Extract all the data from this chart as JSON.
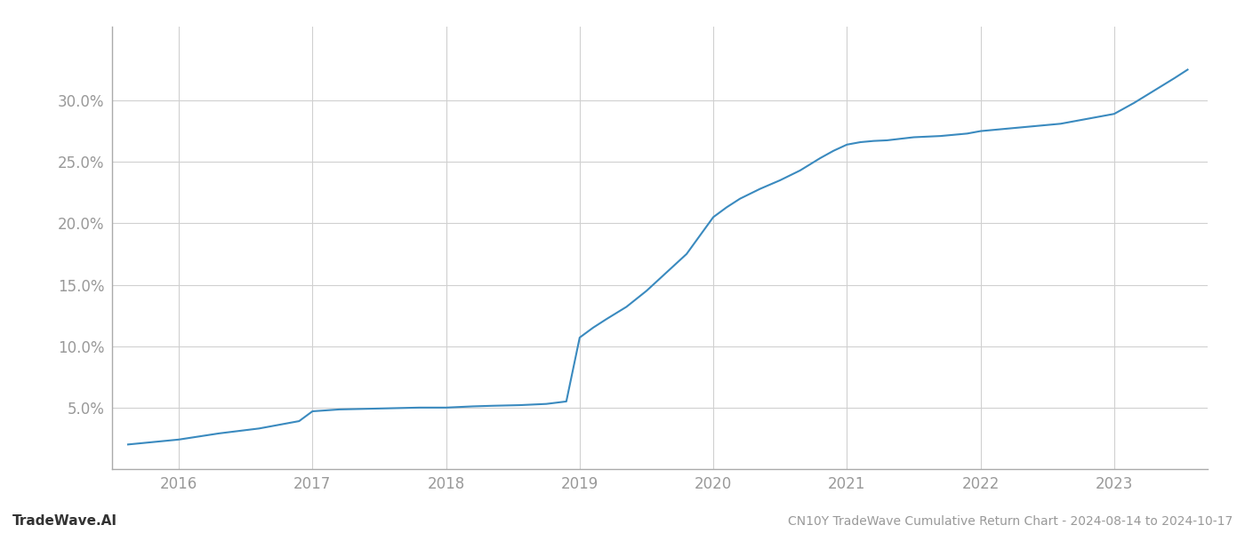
{
  "title": "CN10Y TradeWave Cumulative Return Chart - 2024-08-14 to 2024-10-17",
  "watermark": "TradeWave.AI",
  "line_color": "#3a8abf",
  "background_color": "#ffffff",
  "grid_color": "#d0d0d0",
  "x_years": [
    2015.62,
    2016.0,
    2016.3,
    2016.6,
    2016.9,
    2017.0,
    2017.2,
    2017.4,
    2017.6,
    2017.8,
    2018.0,
    2018.1,
    2018.2,
    2018.35,
    2018.55,
    2018.75,
    2018.9,
    2019.0,
    2019.1,
    2019.2,
    2019.35,
    2019.5,
    2019.65,
    2019.8,
    2020.0,
    2020.1,
    2020.2,
    2020.35,
    2020.5,
    2020.65,
    2020.8,
    2020.9,
    2021.0,
    2021.1,
    2021.2,
    2021.3,
    2021.5,
    2021.7,
    2021.9,
    2022.0,
    2022.2,
    2022.4,
    2022.6,
    2022.8,
    2023.0,
    2023.15,
    2023.3,
    2023.45,
    2023.55
  ],
  "y_values": [
    2.0,
    2.4,
    2.9,
    3.3,
    3.9,
    4.7,
    4.85,
    4.9,
    4.95,
    5.0,
    5.0,
    5.05,
    5.1,
    5.15,
    5.2,
    5.3,
    5.5,
    10.7,
    11.5,
    12.2,
    13.2,
    14.5,
    16.0,
    17.5,
    20.5,
    21.3,
    22.0,
    22.8,
    23.5,
    24.3,
    25.3,
    25.9,
    26.4,
    26.6,
    26.7,
    26.75,
    27.0,
    27.1,
    27.3,
    27.5,
    27.7,
    27.9,
    28.1,
    28.5,
    28.9,
    29.8,
    30.8,
    31.8,
    32.5
  ],
  "xlim": [
    2015.5,
    2023.7
  ],
  "ylim": [
    0,
    36
  ],
  "yticks": [
    5.0,
    10.0,
    15.0,
    20.0,
    25.0,
    30.0
  ],
  "xticks": [
    2016,
    2017,
    2018,
    2019,
    2020,
    2021,
    2022,
    2023
  ],
  "tick_label_color": "#999999",
  "spine_color": "#aaaaaa",
  "line_width": 1.5,
  "title_fontsize": 10,
  "watermark_fontsize": 11,
  "tick_fontsize": 12
}
